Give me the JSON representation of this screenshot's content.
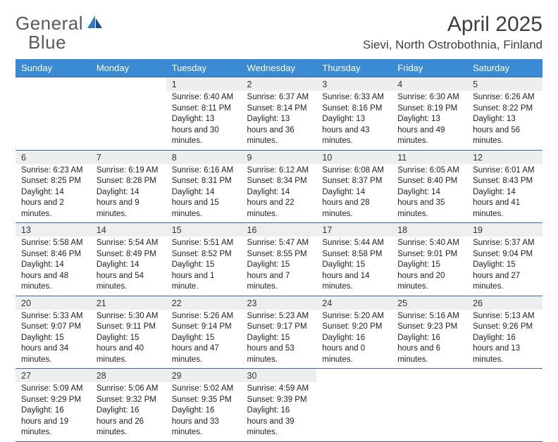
{
  "brand": {
    "line1": "General",
    "line2": "Blue"
  },
  "title": "April 2025",
  "location": "Sievi, North Ostrobothnia, Finland",
  "theme": {
    "header_bg": "#3b8bd4",
    "header_fg": "#ffffff",
    "rule": "#3b6a9a",
    "daynum_bg": "#eceeef",
    "text": "#222222",
    "logo_gray": "#555b60",
    "logo_blue": "#2f78c2"
  },
  "weekdays": [
    "Sunday",
    "Monday",
    "Tuesday",
    "Wednesday",
    "Thursday",
    "Friday",
    "Saturday"
  ],
  "weeks": [
    [
      {
        "n": "",
        "sr": "",
        "ss": "",
        "dl": ""
      },
      {
        "n": "",
        "sr": "",
        "ss": "",
        "dl": ""
      },
      {
        "n": "1",
        "sr": "6:40 AM",
        "ss": "8:11 PM",
        "dl": "13 hours and 30 minutes."
      },
      {
        "n": "2",
        "sr": "6:37 AM",
        "ss": "8:14 PM",
        "dl": "13 hours and 36 minutes."
      },
      {
        "n": "3",
        "sr": "6:33 AM",
        "ss": "8:16 PM",
        "dl": "13 hours and 43 minutes."
      },
      {
        "n": "4",
        "sr": "6:30 AM",
        "ss": "8:19 PM",
        "dl": "13 hours and 49 minutes."
      },
      {
        "n": "5",
        "sr": "6:26 AM",
        "ss": "8:22 PM",
        "dl": "13 hours and 56 minutes."
      }
    ],
    [
      {
        "n": "6",
        "sr": "6:23 AM",
        "ss": "8:25 PM",
        "dl": "14 hours and 2 minutes."
      },
      {
        "n": "7",
        "sr": "6:19 AM",
        "ss": "8:28 PM",
        "dl": "14 hours and 9 minutes."
      },
      {
        "n": "8",
        "sr": "6:16 AM",
        "ss": "8:31 PM",
        "dl": "14 hours and 15 minutes."
      },
      {
        "n": "9",
        "sr": "6:12 AM",
        "ss": "8:34 PM",
        "dl": "14 hours and 22 minutes."
      },
      {
        "n": "10",
        "sr": "6:08 AM",
        "ss": "8:37 PM",
        "dl": "14 hours and 28 minutes."
      },
      {
        "n": "11",
        "sr": "6:05 AM",
        "ss": "8:40 PM",
        "dl": "14 hours and 35 minutes."
      },
      {
        "n": "12",
        "sr": "6:01 AM",
        "ss": "8:43 PM",
        "dl": "14 hours and 41 minutes."
      }
    ],
    [
      {
        "n": "13",
        "sr": "5:58 AM",
        "ss": "8:46 PM",
        "dl": "14 hours and 48 minutes."
      },
      {
        "n": "14",
        "sr": "5:54 AM",
        "ss": "8:49 PM",
        "dl": "14 hours and 54 minutes."
      },
      {
        "n": "15",
        "sr": "5:51 AM",
        "ss": "8:52 PM",
        "dl": "15 hours and 1 minute."
      },
      {
        "n": "16",
        "sr": "5:47 AM",
        "ss": "8:55 PM",
        "dl": "15 hours and 7 minutes."
      },
      {
        "n": "17",
        "sr": "5:44 AM",
        "ss": "8:58 PM",
        "dl": "15 hours and 14 minutes."
      },
      {
        "n": "18",
        "sr": "5:40 AM",
        "ss": "9:01 PM",
        "dl": "15 hours and 20 minutes."
      },
      {
        "n": "19",
        "sr": "5:37 AM",
        "ss": "9:04 PM",
        "dl": "15 hours and 27 minutes."
      }
    ],
    [
      {
        "n": "20",
        "sr": "5:33 AM",
        "ss": "9:07 PM",
        "dl": "15 hours and 34 minutes."
      },
      {
        "n": "21",
        "sr": "5:30 AM",
        "ss": "9:11 PM",
        "dl": "15 hours and 40 minutes."
      },
      {
        "n": "22",
        "sr": "5:26 AM",
        "ss": "9:14 PM",
        "dl": "15 hours and 47 minutes."
      },
      {
        "n": "23",
        "sr": "5:23 AM",
        "ss": "9:17 PM",
        "dl": "15 hours and 53 minutes."
      },
      {
        "n": "24",
        "sr": "5:20 AM",
        "ss": "9:20 PM",
        "dl": "16 hours and 0 minutes."
      },
      {
        "n": "25",
        "sr": "5:16 AM",
        "ss": "9:23 PM",
        "dl": "16 hours and 6 minutes."
      },
      {
        "n": "26",
        "sr": "5:13 AM",
        "ss": "9:26 PM",
        "dl": "16 hours and 13 minutes."
      }
    ],
    [
      {
        "n": "27",
        "sr": "5:09 AM",
        "ss": "9:29 PM",
        "dl": "16 hours and 19 minutes."
      },
      {
        "n": "28",
        "sr": "5:06 AM",
        "ss": "9:32 PM",
        "dl": "16 hours and 26 minutes."
      },
      {
        "n": "29",
        "sr": "5:02 AM",
        "ss": "9:35 PM",
        "dl": "16 hours and 33 minutes."
      },
      {
        "n": "30",
        "sr": "4:59 AM",
        "ss": "9:39 PM",
        "dl": "16 hours and 39 minutes."
      },
      {
        "n": "",
        "sr": "",
        "ss": "",
        "dl": ""
      },
      {
        "n": "",
        "sr": "",
        "ss": "",
        "dl": ""
      },
      {
        "n": "",
        "sr": "",
        "ss": "",
        "dl": ""
      }
    ]
  ],
  "labels": {
    "sunrise": "Sunrise: ",
    "sunset": "Sunset: ",
    "daylight": "Daylight: "
  }
}
